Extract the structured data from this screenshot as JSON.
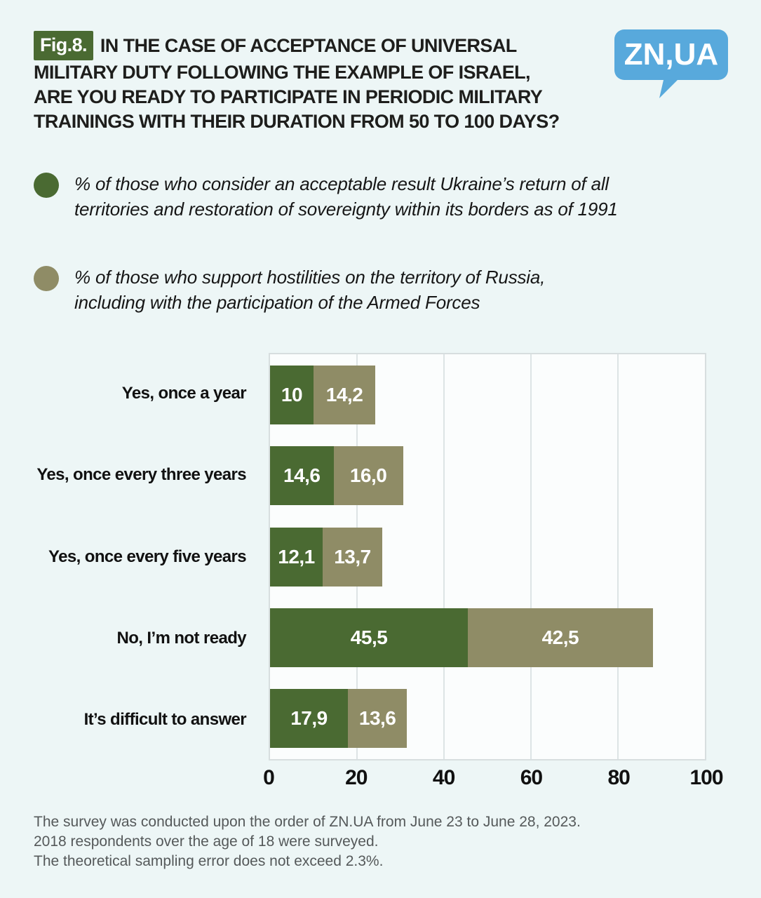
{
  "header": {
    "figure_label": "Fig.8.",
    "title_lines": [
      "IN THE CASE OF ACCEPTANCE OF UNIVERSAL",
      "MILITARY DUTY FOLLOWING THE EXAMPLE OF ISRAEL,",
      "ARE YOU READY TO PARTICIPATE IN PERIODIC MILITARY",
      "TRAININGS WITH THEIR DURATION FROM 50 TO 100 DAYS?"
    ],
    "logo_text": "ZN,UA"
  },
  "colors": {
    "series1_green": "#4a6a32",
    "series2_olive": "#8f8c66",
    "background": "#edf6f6",
    "logo_blue": "#58a9dc",
    "badge_green": "#4a6a32"
  },
  "legend": {
    "items": [
      {
        "color": "#4a6a32",
        "lines": [
          "% of those who consider an acceptable result Ukraine’s return of all",
          "territories and restoration of sovereignty within its borders as of 1991"
        ]
      },
      {
        "color": "#8f8c66",
        "lines": [
          "% of those who support hostilities on the territory of Russia,",
          "including with the participation of the Armed Forces"
        ]
      }
    ]
  },
  "chart_data": {
    "type": "bar",
    "orientation": "horizontal",
    "stacked": true,
    "categories": [
      "Yes, once a year",
      "Yes, once every three years",
      "Yes, once every five years",
      "No, I’m not ready",
      "It’s difficult to answer"
    ],
    "series": [
      {
        "name": "% of those who consider an acceptable result Ukraine’s return of all territories and restoration of sovereignty within its borders as of 1991",
        "color": "#4a6a32",
        "values": [
          10,
          14.6,
          12.1,
          45.5,
          17.9
        ]
      },
      {
        "name": "% of those who support hostilities on the territory of Russia, including with the participation of the Armed Forces",
        "color": "#8f8c66",
        "values": [
          14.2,
          16.0,
          13.7,
          42.5,
          13.6
        ]
      }
    ],
    "value_labels": [
      [
        "10",
        "14,2"
      ],
      [
        "14,6",
        "16,0"
      ],
      [
        "12,1",
        "13,7"
      ],
      [
        "45,5",
        "42,5"
      ],
      [
        "17,9",
        "13,6"
      ]
    ],
    "xlim": [
      0,
      100
    ],
    "x_ticks": [
      "0",
      "20",
      "40",
      "60",
      "80",
      "100"
    ],
    "grid": true,
    "legend_position": "top"
  },
  "footer": {
    "lines": [
      "The survey was conducted upon the order of ZN.UA from June 23 to June 28, 2023.",
      "2018 respondents over the age of 18 were surveyed.",
      "The theoretical sampling error does not exceed 2.3%."
    ]
  }
}
